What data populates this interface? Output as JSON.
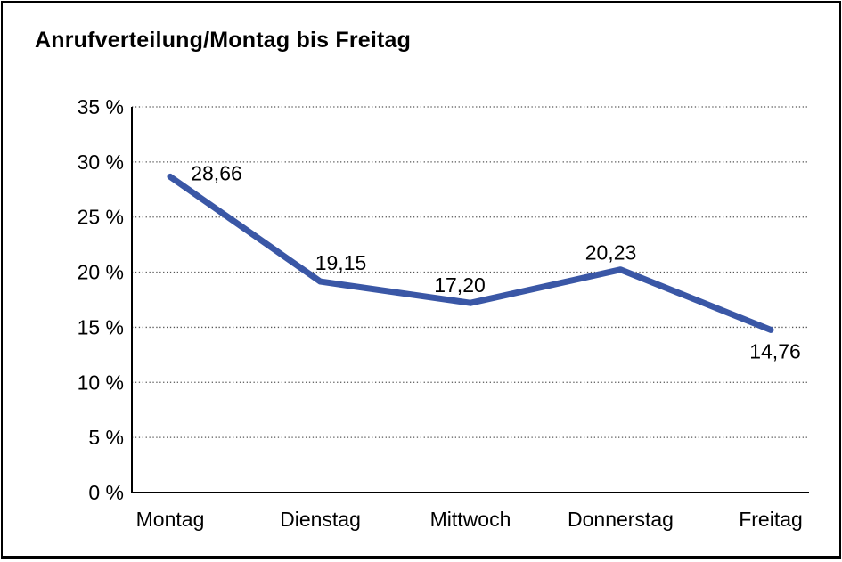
{
  "page": {
    "background_color": "#ffffff",
    "border_color": "#000000"
  },
  "chart_data": {
    "type": "line",
    "title": "Anrufverteilung/Montag bis Freitag",
    "categories": [
      "Montag",
      "Dienstag",
      "Mittwoch",
      "Donnerstag",
      "Freitag"
    ],
    "values": [
      28.66,
      19.15,
      17.2,
      20.23,
      14.76
    ],
    "point_labels": [
      "28,66",
      "19,15",
      "17,20",
      "20,23",
      "14,76"
    ],
    "y_tick_values": [
      0,
      5,
      10,
      15,
      20,
      25,
      30,
      35
    ],
    "y_tick_labels": [
      "0 %",
      "5 %",
      "10 %",
      "15 %",
      "20 %",
      "25 %",
      "30 %",
      "35 %"
    ],
    "ylim": [
      0,
      35
    ],
    "xlabel": "",
    "ylabel": "",
    "grid": "horizontal-dotted",
    "legend": "none",
    "line_color": "#3A57A6",
    "axis_color": "#000000",
    "gridline_color": "#555555",
    "label_color": "#000000"
  }
}
